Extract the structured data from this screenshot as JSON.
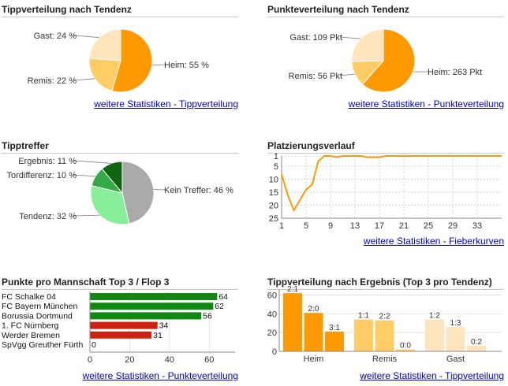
{
  "colors": {
    "orange": "#ff9900",
    "orange_mid": "#ffcc66",
    "orange_light": "#ffe5bd",
    "gray": "#aaaaaa",
    "green_light": "#88ee99",
    "green_mid": "#33aa44",
    "green_dark": "#116611",
    "bar_green": "#118811",
    "bar_red": "#cc2211",
    "link": "#0000cc"
  },
  "panels": {
    "tippverteilung": {
      "title": "Tippverteilung nach Tendenz",
      "link": "weitere Statistiken - Tippverteilung"
    },
    "punkteverteilung": {
      "title": "Punkteverteilung nach Tendenz",
      "link": "weitere Statistiken - Punkteverteilung"
    },
    "tipptreffer": {
      "title": "Tipptreffer"
    },
    "platzierung": {
      "title": "Platzierungsverlauf",
      "link": "weitere Statistiken - Fieberkurven"
    },
    "mannschaft": {
      "title": "Punkte pro Mannschaft Top 3 / Flop 3",
      "link": "weitere Statistiken - Punkteverteilung"
    },
    "ergebnis": {
      "title": "Tippverteilung nach Ergebnis (Top 3 pro Tendenz)",
      "link": "weitere Statistiken - Tippverteilung"
    }
  },
  "chart_data": [
    {
      "type": "pie",
      "title": "Tippverteilung nach Tendenz",
      "slices": [
        {
          "label": "Heim: 55 %",
          "value": 55
        },
        {
          "label": "Remis: 22 %",
          "value": 22
        },
        {
          "label": "Gast: 24 %",
          "value": 24
        }
      ]
    },
    {
      "type": "pie",
      "title": "Punkteverteilung nach Tendenz",
      "slices": [
        {
          "label": "Heim: 263 Pkt",
          "value": 263
        },
        {
          "label": "Remis: 56 Pkt",
          "value": 56
        },
        {
          "label": "Gast: 109 Pkt",
          "value": 109
        }
      ]
    },
    {
      "type": "pie",
      "title": "Tipptreffer",
      "slices": [
        {
          "label": "Kein Treffer: 46 %",
          "value": 46
        },
        {
          "label": "Tendenz: 32 %",
          "value": 32
        },
        {
          "label": "Tordifferenz: 10 %",
          "value": 10
        },
        {
          "label": "Ergebnis: 11 %",
          "value": 11
        }
      ]
    },
    {
      "type": "line",
      "title": "Platzierungsverlauf",
      "x": [
        1,
        2,
        3,
        4,
        5,
        6,
        7,
        8,
        9,
        10,
        11,
        12,
        13,
        14,
        15,
        16,
        17,
        18,
        19,
        20,
        21,
        22,
        23,
        24,
        25,
        26,
        27,
        28,
        29,
        30,
        31,
        32,
        33,
        34,
        35,
        36,
        37
      ],
      "y": [
        8,
        16,
        22,
        18,
        14,
        12,
        3,
        1,
        1,
        1.5,
        1,
        1,
        1,
        1,
        1.5,
        1.5,
        1.5,
        1,
        1,
        1,
        1,
        1,
        1,
        1,
        1,
        1,
        1,
        1,
        1,
        1,
        1,
        1,
        1,
        1,
        1,
        1,
        1
      ],
      "xticks": [
        1,
        5,
        9,
        13,
        17,
        21,
        25,
        29,
        33
      ],
      "yticks": [
        1,
        5,
        10,
        15,
        20,
        25
      ],
      "xlim": [
        1,
        37
      ],
      "ylim": [
        1,
        25
      ],
      "y_inverted": true,
      "grid": true
    },
    {
      "type": "bar",
      "orientation": "horizontal",
      "title": "Punkte pro Mannschaft Top 3 / Flop 3",
      "categories": [
        "FC Schalke 04",
        "FC Bayern München",
        "Borussia Dortmund",
        "1. FC Nürnberg",
        "Werder Bremen",
        "SpVgg Greuther Fürth"
      ],
      "values": [
        64,
        62,
        56,
        34,
        31,
        0
      ],
      "groups": [
        "top",
        "top",
        "top",
        "flop",
        "flop",
        "flop"
      ],
      "xticks": [
        0,
        20,
        40,
        60
      ],
      "xlim": [
        0,
        73
      ]
    },
    {
      "type": "bar",
      "title": "Tippverteilung nach Ergebnis (Top 3 pro Tendenz)",
      "groups": [
        {
          "name": "Heim",
          "bars": [
            {
              "label": "2:1",
              "value": 62
            },
            {
              "label": "2:0",
              "value": 41
            },
            {
              "label": "3:1",
              "value": 21
            }
          ]
        },
        {
          "name": "Remis",
          "bars": [
            {
              "label": "1:1",
              "value": 34
            },
            {
              "label": "2:2",
              "value": 33
            },
            {
              "label": "0:0",
              "value": 2
            }
          ]
        },
        {
          "name": "Gast",
          "bars": [
            {
              "label": "1:2",
              "value": 34
            },
            {
              "label": "1:3",
              "value": 26
            },
            {
              "label": "0:2",
              "value": 6
            }
          ]
        }
      ],
      "yticks": [
        0,
        20,
        40,
        60
      ],
      "ylim": [
        0,
        63
      ]
    }
  ]
}
